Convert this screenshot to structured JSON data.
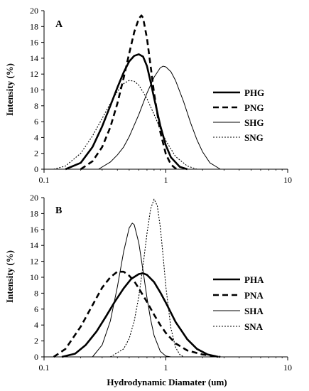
{
  "chart_data": [
    {
      "type": "line",
      "panel_label": "A",
      "xscale": "log",
      "xlim": [
        0.1,
        10
      ],
      "ylim": [
        0,
        20
      ],
      "xticks": [
        0.1,
        1,
        10
      ],
      "xtick_labels": [
        "0.1",
        "1",
        "10"
      ],
      "yticks": [
        0,
        2,
        4,
        6,
        8,
        10,
        12,
        14,
        16,
        18,
        20
      ],
      "ytick_labels": [
        "0",
        "2",
        "4",
        "6",
        "8",
        "10",
        "12",
        "14",
        "16",
        "18",
        "20"
      ],
      "xlabel": "",
      "ylabel": "Intensity (%)",
      "grid": false,
      "legend_position": "right",
      "series": [
        {
          "name": "PHG",
          "style": "solid-thick",
          "x": [
            0.15,
            0.2,
            0.25,
            0.3,
            0.35,
            0.4,
            0.45,
            0.5,
            0.55,
            0.6,
            0.65,
            0.7,
            0.75,
            0.8,
            0.9,
            1.0,
            1.1,
            1.3,
            1.5
          ],
          "y": [
            0,
            0.8,
            2.8,
            5.4,
            8.0,
            10.3,
            12.2,
            13.6,
            14.3,
            14.5,
            14.2,
            13.0,
            11.0,
            9.0,
            5.5,
            3.0,
            1.5,
            0.3,
            0
          ]
        },
        {
          "name": "PNG",
          "style": "dashed-thick",
          "x": [
            0.2,
            0.25,
            0.3,
            0.35,
            0.4,
            0.45,
            0.5,
            0.55,
            0.6,
            0.63,
            0.65,
            0.7,
            0.75,
            0.8,
            0.9,
            1.0,
            1.1,
            1.2,
            1.3
          ],
          "y": [
            0,
            1.0,
            2.8,
            5.3,
            8.3,
            11.5,
            14.6,
            17.3,
            19.0,
            19.4,
            19.1,
            16.5,
            13.0,
            9.6,
            4.7,
            1.9,
            0.6,
            0.1,
            0
          ]
        },
        {
          "name": "SHG",
          "style": "solid-thin",
          "x": [
            0.28,
            0.35,
            0.4,
            0.45,
            0.5,
            0.6,
            0.7,
            0.8,
            0.9,
            0.95,
            1.0,
            1.1,
            1.2,
            1.4,
            1.6,
            1.8,
            2.0,
            2.3,
            2.8
          ],
          "y": [
            0,
            0.9,
            1.8,
            2.8,
            4.1,
            6.9,
            9.6,
            11.6,
            12.8,
            13.0,
            12.9,
            12.3,
            11.2,
            8.5,
            5.8,
            3.7,
            2.2,
            0.8,
            0
          ]
        },
        {
          "name": "SNG",
          "style": "dotted-thin",
          "x": [
            0.12,
            0.15,
            0.2,
            0.25,
            0.3,
            0.35,
            0.4,
            0.45,
            0.5,
            0.55,
            0.6,
            0.7,
            0.8,
            0.9,
            1.0,
            1.2,
            1.5,
            1.8
          ],
          "y": [
            0,
            0.4,
            2.0,
            4.2,
            6.4,
            8.3,
            9.8,
            10.8,
            11.2,
            11.1,
            10.6,
            8.9,
            6.9,
            5.1,
            3.6,
            1.6,
            0.4,
            0
          ]
        }
      ]
    },
    {
      "type": "line",
      "panel_label": "B",
      "xscale": "log",
      "xlim": [
        0.1,
        10
      ],
      "ylim": [
        0,
        20
      ],
      "xticks": [
        0.1,
        1,
        10
      ],
      "xtick_labels": [
        "0.1",
        "1",
        "10"
      ],
      "yticks": [
        0,
        2,
        4,
        6,
        8,
        10,
        12,
        14,
        16,
        18,
        20
      ],
      "ytick_labels": [
        "0",
        "2",
        "4",
        "6",
        "8",
        "10",
        "12",
        "14",
        "16",
        "18",
        "20"
      ],
      "xlabel": "Hydrodynamic Diamater (um)",
      "ylabel": "Intensity (%)",
      "grid": false,
      "legend_position": "right",
      "series": [
        {
          "name": "PHA",
          "style": "solid-thick",
          "x": [
            0.14,
            0.18,
            0.22,
            0.27,
            0.32,
            0.38,
            0.45,
            0.52,
            0.6,
            0.65,
            0.7,
            0.8,
            0.9,
            1.0,
            1.2,
            1.5,
            1.8,
            2.2,
            2.7
          ],
          "y": [
            0,
            0.4,
            1.5,
            3.2,
            5.0,
            6.9,
            8.6,
            9.8,
            10.4,
            10.5,
            10.3,
            9.4,
            8.1,
            6.8,
            4.4,
            2.2,
            1.0,
            0.3,
            0
          ]
        },
        {
          "name": "PNA",
          "style": "dashed-thick",
          "x": [
            0.12,
            0.15,
            0.2,
            0.25,
            0.3,
            0.35,
            0.4,
            0.45,
            0.5,
            0.55,
            0.6,
            0.7,
            0.8,
            0.9,
            1.0,
            1.2,
            1.5,
            2.0,
            2.8
          ],
          "y": [
            0,
            1.0,
            3.8,
            6.5,
            8.7,
            10.0,
            10.7,
            10.7,
            10.2,
            9.5,
            8.6,
            6.9,
            5.3,
            4.0,
            3.0,
            1.7,
            0.8,
            0.3,
            0
          ]
        },
        {
          "name": "SHA",
          "style": "solid-thin",
          "x": [
            0.25,
            0.3,
            0.35,
            0.4,
            0.45,
            0.5,
            0.53,
            0.55,
            0.6,
            0.65,
            0.7,
            0.75,
            0.8,
            0.9,
            1.0,
            1.1
          ],
          "y": [
            0,
            1.5,
            4.5,
            8.8,
            13.2,
            16.2,
            16.8,
            16.6,
            14.3,
            10.8,
            7.4,
            4.7,
            2.7,
            0.7,
            0.1,
            0
          ]
        },
        {
          "name": "SNA",
          "style": "dotted-thin",
          "x": [
            0.35,
            0.45,
            0.5,
            0.55,
            0.6,
            0.65,
            0.7,
            0.75,
            0.8,
            0.85,
            0.9,
            0.95,
            1.0,
            1.1,
            1.2,
            1.3,
            1.4
          ],
          "y": [
            0,
            1.0,
            2.3,
            4.5,
            7.6,
            11.5,
            15.5,
            18.6,
            19.8,
            19.0,
            16.3,
            12.6,
            8.8,
            3.6,
            1.2,
            0.3,
            0
          ]
        }
      ]
    }
  ]
}
